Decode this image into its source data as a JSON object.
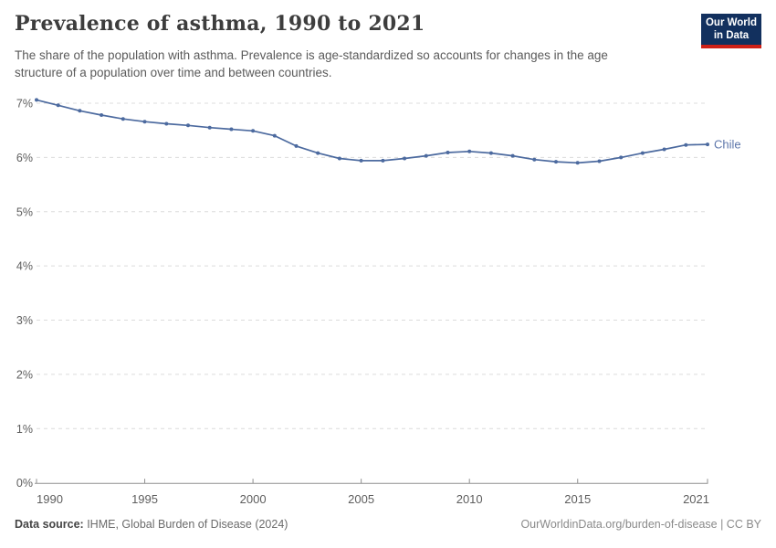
{
  "header": {
    "title": "Prevalence of asthma, 1990 to 2021",
    "subtitle": {
      "line1": "The share of the population with asthma. Prevalence is age-standardized so accounts for changes in the age",
      "line2": "structure of a population over time and between countries."
    },
    "logo": {
      "line1": "Our World",
      "line2": "in Data"
    }
  },
  "chart_data": {
    "type": "line",
    "title": "Prevalence of asthma, 1990 to 2021",
    "xlabel": "",
    "ylabel": "",
    "x": [
      1990,
      1991,
      1992,
      1993,
      1994,
      1995,
      1996,
      1997,
      1998,
      1999,
      2000,
      2001,
      2002,
      2003,
      2004,
      2005,
      2006,
      2007,
      2008,
      2009,
      2010,
      2011,
      2012,
      2013,
      2014,
      2015,
      2016,
      2017,
      2018,
      2019,
      2020,
      2021
    ],
    "series": [
      {
        "name": "Chile",
        "values": [
          7.06,
          6.96,
          6.86,
          6.78,
          6.71,
          6.66,
          6.62,
          6.59,
          6.55,
          6.52,
          6.49,
          6.4,
          6.21,
          6.08,
          5.98,
          5.94,
          5.94,
          5.98,
          6.03,
          6.09,
          6.11,
          6.08,
          6.03,
          5.96,
          5.92,
          5.9,
          5.93,
          6.0,
          6.08,
          6.15,
          6.23,
          6.24
        ]
      }
    ],
    "xlim": [
      1990,
      2021
    ],
    "ylim": [
      0,
      7
    ],
    "yticks": [
      {
        "value": 0,
        "label": "0%"
      },
      {
        "value": 1,
        "label": "1%"
      },
      {
        "value": 2,
        "label": "2%"
      },
      {
        "value": 3,
        "label": "3%"
      },
      {
        "value": 4,
        "label": "4%"
      },
      {
        "value": 5,
        "label": "5%"
      },
      {
        "value": 6,
        "label": "6%"
      },
      {
        "value": 7,
        "label": "7%"
      }
    ],
    "xticks": [
      {
        "value": 1990,
        "label": "1990"
      },
      {
        "value": 1995,
        "label": "1995"
      },
      {
        "value": 2000,
        "label": "2000"
      },
      {
        "value": 2005,
        "label": "2005"
      },
      {
        "value": 2010,
        "label": "2010"
      },
      {
        "value": 2015,
        "label": "2015"
      },
      {
        "value": 2021,
        "label": "2021"
      }
    ],
    "grid": "horizontal-dashed",
    "legend_position": "end-of-line-label",
    "end_label": "Chile"
  },
  "footer": {
    "source_label": "Data source:",
    "source_text": " IHME, Global Burden of Disease (2024)",
    "license_text": "OurWorldinData.org/burden-of-disease | CC BY"
  },
  "colors": {
    "line": "#4c6a9f",
    "end_label": "#5e77ab",
    "grid": "#dcdcdc",
    "axis": "#8f8f8f",
    "tick_text": "#5e5e5e",
    "logo_bg": "#12305e",
    "logo_red": "#ce2017"
  }
}
